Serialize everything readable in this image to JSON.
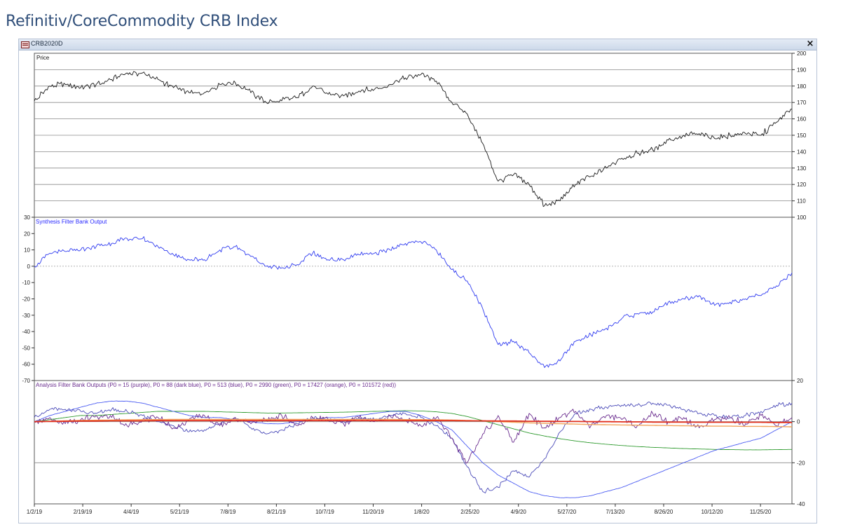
{
  "page": {
    "title": "Refinitiv/CoreCommodity CRB Index"
  },
  "window": {
    "title": "CRB2020D",
    "close_label": "×"
  },
  "icons": {
    "window_icon": "chart-window-icon",
    "close_icon": "close-icon"
  },
  "colors": {
    "price_line": "#1a1a1a",
    "synthesis_line": "#2f3bf0",
    "purple": "#6a2c8e",
    "dark_blue": "#4a4ab8",
    "blue": "#4b5cf2",
    "green": "#2e9a2e",
    "orange": "#f2a35a",
    "red": "#e2301e",
    "panel_label_blue": "#2a2aff",
    "panel_label_purple": "#6a2c8e",
    "grid": "#9a9a9a"
  },
  "chart_data": [
    {
      "type": "line",
      "title": "Price",
      "yaxis_side": "right",
      "ylim": [
        100,
        200
      ],
      "yticks": [
        100,
        110,
        120,
        130,
        140,
        150,
        160,
        170,
        180,
        190,
        200
      ],
      "grid": true,
      "series": [
        {
          "x": [
            "1/2/19",
            "1/15/19",
            "2/1/19",
            "2/19/19",
            "3/5/19",
            "3/20/19",
            "4/4/19",
            "4/15/19",
            "5/1/19",
            "5/21/19",
            "6/5/19",
            "6/20/19",
            "7/8/19",
            "7/20/19",
            "8/5/19",
            "8/21/19",
            "9/5/19",
            "9/20/19",
            "10/7/19",
            "10/20/19",
            "11/5/19",
            "11/20/19",
            "12/5/19",
            "12/20/19",
            "1/8/20",
            "1/20/20",
            "2/5/20",
            "2/25/20",
            "3/5/20",
            "3/18/20",
            "3/31/20",
            "4/9/20",
            "4/21/20",
            "5/1/20",
            "5/12/20",
            "5/27/20",
            "6/10/20",
            "6/25/20",
            "7/13/20",
            "7/28/20",
            "8/10/20",
            "8/26/20",
            "9/10/20",
            "9/25/20",
            "10/12/20",
            "10/27/20",
            "11/10/20",
            "11/25/20",
            "12/10/20",
            "12/31/20"
          ],
          "values": [
            171,
            180,
            181,
            179,
            181,
            184,
            188,
            188,
            184,
            179,
            176,
            176,
            181,
            182,
            176,
            170,
            171,
            173,
            180,
            175,
            174,
            177,
            178,
            181,
            185,
            187,
            183,
            170,
            163,
            145,
            122,
            126,
            120,
            107,
            110,
            120,
            125,
            130,
            136,
            139,
            141,
            147,
            150,
            151,
            148,
            150,
            151,
            150,
            158,
            166
          ]
        }
      ]
    },
    {
      "type": "line",
      "title": "Synthesis Filter Bank Output",
      "yaxis_side": "left",
      "ylim": [
        -70,
        30
      ],
      "yticks": [
        -70,
        -60,
        -50,
        -40,
        -30,
        -20,
        -10,
        0,
        10,
        20,
        30
      ],
      "zero_line": "dotted",
      "series": [
        {
          "x": [
            "1/2/19",
            "1/15/19",
            "2/1/19",
            "2/19/19",
            "3/5/19",
            "3/20/19",
            "4/4/19",
            "4/15/19",
            "5/1/19",
            "5/21/19",
            "6/5/19",
            "6/20/19",
            "7/8/19",
            "7/20/19",
            "8/5/19",
            "8/21/19",
            "9/5/19",
            "9/20/19",
            "10/7/19",
            "10/20/19",
            "11/5/19",
            "11/20/19",
            "12/5/19",
            "12/20/19",
            "1/8/20",
            "1/20/20",
            "2/5/20",
            "2/25/20",
            "3/5/20",
            "3/18/20",
            "3/31/20",
            "4/9/20",
            "4/21/20",
            "5/1/20",
            "5/12/20",
            "5/27/20",
            "6/10/20",
            "6/25/20",
            "7/13/20",
            "7/28/20",
            "8/10/20",
            "8/26/20",
            "9/10/20",
            "9/25/20",
            "10/12/20",
            "10/27/20",
            "11/10/20",
            "11/25/20",
            "12/10/20",
            "12/31/20"
          ],
          "values": [
            0,
            8,
            9,
            10,
            12,
            14,
            17,
            17,
            12,
            7,
            4,
            4,
            10,
            12,
            6,
            0,
            -1,
            1,
            8,
            4,
            4,
            7,
            8,
            10,
            14,
            15,
            10,
            -2,
            -9,
            -26,
            -48,
            -46,
            -53,
            -62,
            -58,
            -46,
            -42,
            -38,
            -32,
            -29,
            -28,
            -22,
            -20,
            -18,
            -24,
            -22,
            -20,
            -18,
            -12,
            -4
          ]
        }
      ]
    },
    {
      "type": "line",
      "title": "Analysis Filter Bank Outputs (P0 = 15 (purple), P0 = 88 (dark blue), P0 = 513 (blue), P0 = 2990 (green), P0 = 17427 (orange), P0 = 101572 (red))",
      "yaxis_side": "right",
      "ylim": [
        -40,
        20
      ],
      "yticks": [
        -40,
        -20,
        0,
        20
      ],
      "x_tick_labels": [
        "1/2/19",
        "2/19/19",
        "4/4/19",
        "5/21/19",
        "7/8/19",
        "8/21/19",
        "10/7/19",
        "11/20/19",
        "1/8/20",
        "2/25/20",
        "4/9/20",
        "5/27/20",
        "7/13/20",
        "8/26/20",
        "10/12/20",
        "11/25/20"
      ],
      "series": [
        {
          "name": "P0 = 15 (purple)",
          "color_key": "purple",
          "values": [
            0,
            2,
            -1,
            1,
            3,
            2,
            -2,
            1,
            2,
            -3,
            1,
            3,
            -2,
            2,
            -1,
            1,
            3,
            -2,
            2,
            1,
            -1,
            2,
            0,
            3,
            1,
            -2,
            2,
            -8,
            -20,
            -6,
            3,
            -10,
            4,
            -3,
            2,
            5,
            -2,
            3,
            1,
            -2,
            4,
            0,
            2,
            -3,
            1,
            2,
            -1,
            3,
            -2,
            2
          ]
        },
        {
          "name": "P0 = 88 (dark blue)",
          "color_key": "dark_blue",
          "values": [
            2,
            6,
            6,
            5,
            4,
            6,
            5,
            3,
            0,
            -2,
            -5,
            -4,
            -1,
            2,
            -3,
            -6,
            -4,
            -1,
            2,
            1,
            0,
            2,
            1,
            3,
            4,
            2,
            -2,
            -8,
            -22,
            -34,
            -32,
            -24,
            -27,
            -18,
            -5,
            4,
            6,
            7,
            8,
            8,
            9,
            8,
            6,
            4,
            3,
            2,
            3,
            5,
            8,
            9
          ]
        },
        {
          "name": "P0 = 513 (blue)",
          "color_key": "blue",
          "values": [
            0,
            3,
            5,
            7,
            9,
            10,
            10,
            9,
            7,
            5,
            3,
            2,
            2,
            1,
            0,
            -1,
            -1,
            0,
            1,
            2,
            2,
            3,
            4,
            5,
            5,
            3,
            0,
            -4,
            -12,
            -20,
            -26,
            -30,
            -34,
            -36,
            -37,
            -37,
            -36,
            -34,
            -32,
            -29,
            -26,
            -23,
            -20,
            -17,
            -14,
            -12,
            -10,
            -8,
            -4,
            0
          ]
        },
        {
          "name": "P0 = 2990 (green)",
          "color_key": "green",
          "values": [
            0,
            1,
            2,
            3,
            3,
            3.5,
            4,
            4.5,
            5,
            5,
            5,
            5,
            4.8,
            4.6,
            4.4,
            4.2,
            4.2,
            4.3,
            4.4,
            4.5,
            4.6,
            4.8,
            5,
            5.2,
            5.3,
            5.2,
            4.8,
            4,
            2.5,
            0.5,
            -1.5,
            -3.5,
            -5.5,
            -7,
            -8.3,
            -9.4,
            -10.3,
            -11,
            -11.6,
            -12.1,
            -12.5,
            -12.8,
            -13.1,
            -13.3,
            -13.5,
            -13.6,
            -13.7,
            -13.7,
            -13.6,
            -13.5
          ]
        },
        {
          "name": "P0 = 17427 (orange)",
          "color_key": "orange",
          "values": [
            0,
            0.2,
            0.4,
            0.6,
            0.7,
            0.8,
            0.9,
            1,
            1,
            1.1,
            1.1,
            1.1,
            1.1,
            1.1,
            1.1,
            1.1,
            1.1,
            1.1,
            1.1,
            1.1,
            1.1,
            1.1,
            1.1,
            1.1,
            1,
            1,
            0.9,
            0.8,
            0.6,
            0.3,
            0,
            -0.3,
            -0.6,
            -0.8,
            -1,
            -1.2,
            -1.4,
            -1.5,
            -1.6,
            -1.7,
            -1.8,
            -1.9,
            -2,
            -2.1,
            -2.2,
            -2.2,
            -2.3,
            -2.3,
            -2.4,
            -2.5
          ]
        },
        {
          "name": "P0 = 101572 (red)",
          "color_key": "red",
          "values": [
            0,
            0.1,
            0.2,
            0.3,
            0.3,
            0.4,
            0.4,
            0.4,
            0.5,
            0.5,
            0.5,
            0.5,
            0.5,
            0.5,
            0.5,
            0.5,
            0.5,
            0.5,
            0.5,
            0.5,
            0.5,
            0.5,
            0.5,
            0.5,
            0.5,
            0.5,
            0.5,
            0.5,
            0.4,
            0.4,
            0.3,
            0.3,
            0.2,
            0.2,
            0.1,
            0.1,
            0,
            0,
            -0.1,
            -0.1,
            -0.2,
            -0.2,
            -0.2,
            -0.3,
            -0.3,
            -0.3,
            -0.3,
            -0.3,
            -0.4,
            -0.4
          ]
        }
      ]
    }
  ]
}
